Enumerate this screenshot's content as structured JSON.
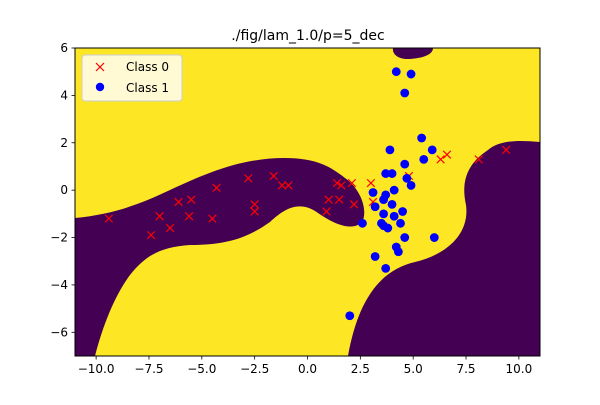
{
  "chart_data": {
    "type": "scatter",
    "title": "./fig/lam_1.0/p=5_dec",
    "xlabel": "",
    "ylabel": "",
    "xlim": [
      -11,
      11
    ],
    "ylim": [
      -7,
      6
    ],
    "xticks": [
      -10.0,
      -7.5,
      -5.0,
      -2.5,
      0.0,
      2.5,
      5.0,
      7.5,
      10.0
    ],
    "xtick_labels": [
      "−10.0",
      "−7.5",
      "−5.0",
      "−2.5",
      "0.0",
      "2.5",
      "5.0",
      "7.5",
      "10.0"
    ],
    "yticks": [
      -6,
      -4,
      -2,
      0,
      2,
      4,
      6
    ],
    "ytick_labels": [
      "−6",
      "−4",
      "−2",
      "0",
      "2",
      "4",
      "6"
    ],
    "grid": false,
    "legend_position": "top-left",
    "background_regions": {
      "class_0_color": "#440154",
      "class_1_color": "#fde725"
    },
    "series": [
      {
        "name": "Class 0",
        "marker": "x",
        "color": "#ff0000",
        "points": [
          [
            -9.4,
            -1.2
          ],
          [
            -7.4,
            -1.9
          ],
          [
            -7.0,
            -1.1
          ],
          [
            -6.5,
            -1.6
          ],
          [
            -6.1,
            -0.5
          ],
          [
            -5.6,
            -1.1
          ],
          [
            -5.5,
            -0.4
          ],
          [
            -4.5,
            -1.2
          ],
          [
            -4.3,
            0.1
          ],
          [
            -2.8,
            0.5
          ],
          [
            -2.5,
            -0.6
          ],
          [
            -2.5,
            -0.9
          ],
          [
            -1.6,
            0.6
          ],
          [
            -1.2,
            0.2
          ],
          [
            -0.9,
            0.2
          ],
          [
            0.9,
            -0.9
          ],
          [
            1.0,
            -0.4
          ],
          [
            1.4,
            0.3
          ],
          [
            1.5,
            -0.4
          ],
          [
            1.6,
            0.2
          ],
          [
            2.1,
            0.3
          ],
          [
            2.2,
            -0.6
          ],
          [
            3.0,
            0.3
          ],
          [
            3.1,
            -0.5
          ],
          [
            4.8,
            0.6
          ],
          [
            6.3,
            1.3
          ],
          [
            6.6,
            1.5
          ],
          [
            8.1,
            1.3
          ],
          [
            9.4,
            1.7
          ]
        ]
      },
      {
        "name": "Class 1",
        "marker": "o",
        "color": "#0000ff",
        "points": [
          [
            4.2,
            5.0
          ],
          [
            4.9,
            4.9
          ],
          [
            4.6,
            4.1
          ],
          [
            5.4,
            2.2
          ],
          [
            5.9,
            1.7
          ],
          [
            3.9,
            1.7
          ],
          [
            5.5,
            1.3
          ],
          [
            4.6,
            1.1
          ],
          [
            3.7,
            0.7
          ],
          [
            4.0,
            0.7
          ],
          [
            4.7,
            0.5
          ],
          [
            4.9,
            0.2
          ],
          [
            4.1,
            0.0
          ],
          [
            3.1,
            -0.1
          ],
          [
            3.7,
            -0.2
          ],
          [
            3.6,
            -0.4
          ],
          [
            3.2,
            -0.7
          ],
          [
            4.0,
            -0.6
          ],
          [
            4.5,
            -0.9
          ],
          [
            3.6,
            -1.0
          ],
          [
            4.1,
            -1.1
          ],
          [
            3.5,
            -1.4
          ],
          [
            2.6,
            -1.4
          ],
          [
            3.6,
            -1.5
          ],
          [
            4.4,
            -1.4
          ],
          [
            3.8,
            -1.6
          ],
          [
            4.6,
            -2.0
          ],
          [
            6.0,
            -2.0
          ],
          [
            4.2,
            -2.4
          ],
          [
            4.3,
            -2.6
          ],
          [
            3.2,
            -2.8
          ],
          [
            3.7,
            -3.3
          ],
          [
            2.0,
            -5.3
          ]
        ]
      }
    ]
  }
}
